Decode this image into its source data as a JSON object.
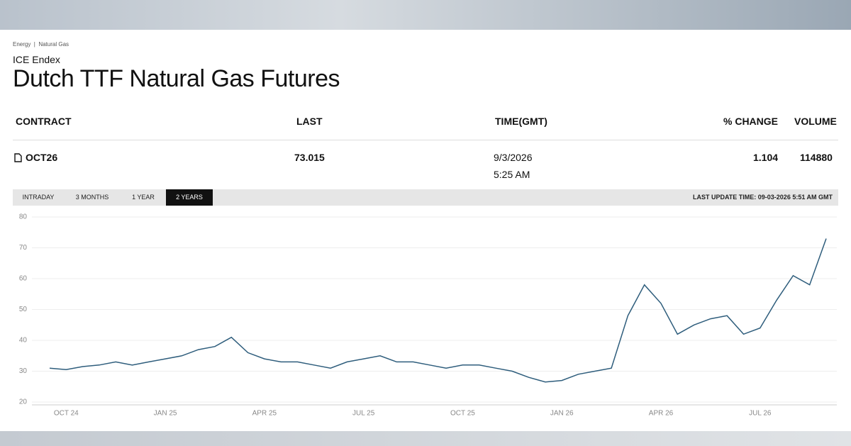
{
  "header": {
    "breadcrumb": [
      "Energy",
      "Natural Gas"
    ],
    "exchange": "ICE Endex",
    "title": "Dutch TTF Natural Gas Futures"
  },
  "table": {
    "columns": [
      "CONTRACT",
      "LAST",
      "TIME(GMT)",
      "% CHANGE",
      "VOLUME"
    ],
    "rows": [
      [
        "OCT26",
        "73.015",
        [
          "9/3/2026",
          "5:25 AM"
        ],
        "1.104",
        "114880"
      ]
    ]
  },
  "tabs": [
    "INTRADAY",
    "3 MONTHS",
    "1 YEAR",
    "2 YEARS"
  ],
  "active_tab": 3,
  "last_update": "LAST UPDATE TIME: 09-03-2026 5:51 AM GMT",
  "chart_data": {
    "type": "line",
    "categories": [
      null,
      "OCT 24",
      null,
      null,
      null,
      null,
      null,
      "JAN 25",
      null,
      null,
      null,
      null,
      null,
      "APR 25",
      null,
      null,
      null,
      null,
      null,
      "JUL 25",
      null,
      null,
      null,
      null,
      null,
      "OCT 25",
      null,
      null,
      null,
      null,
      null,
      "JAN 26",
      null,
      null,
      null,
      null,
      null,
      "APR 26",
      null,
      null,
      null,
      null,
      null,
      "JUL 26",
      null,
      null,
      null,
      null
    ],
    "values": [
      31,
      30.5,
      31.5,
      32,
      33,
      32,
      33,
      34,
      35,
      37,
      38,
      41,
      36,
      34,
      33,
      33,
      32,
      31,
      33,
      34,
      35,
      33,
      33,
      32,
      31,
      32,
      32,
      31,
      30,
      28,
      26.5,
      27,
      29,
      30,
      31,
      48,
      58,
      52,
      42,
      45,
      47,
      48,
      42,
      44,
      53,
      61,
      58,
      73
    ],
    "color": "#2e5d7c",
    "ylim": [
      20,
      80
    ],
    "yticks": [
      20,
      30,
      40,
      50,
      60,
      70,
      80
    ],
    "grid": true
  }
}
